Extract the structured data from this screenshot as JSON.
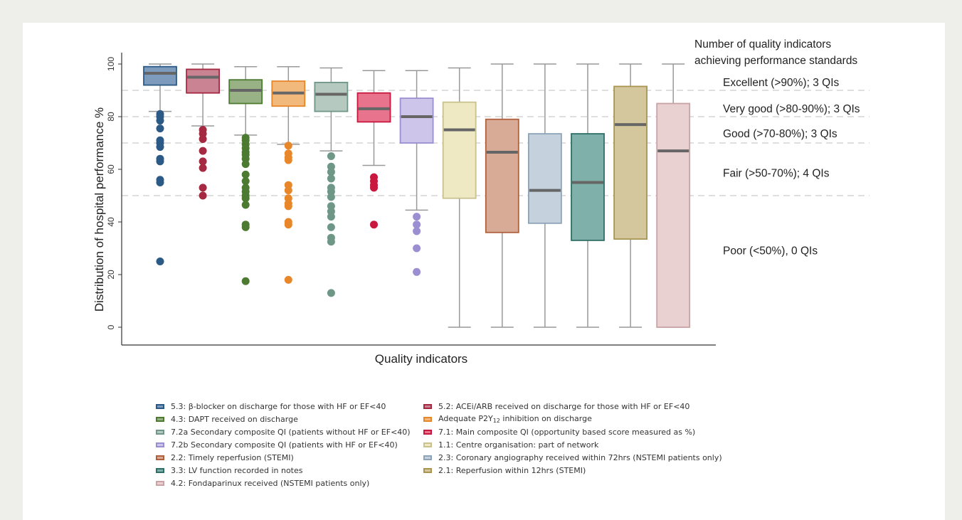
{
  "chart_data": {
    "type": "box",
    "xlabel": "Quality indicators",
    "ylabel": "Distribution of hospital performance %",
    "ylim": [
      0,
      100
    ],
    "yticks": [
      0,
      20,
      40,
      60,
      80,
      100
    ],
    "reference_lines": [
      50,
      70,
      80,
      90
    ],
    "annotation_title": [
      "Number of quality indicators",
      "achieving performance standards"
    ],
    "annotations": [
      {
        "text": "Excellent (>90%); 3 QIs",
        "y": 93
      },
      {
        "text": "Very good (>80-90%); 3 QIs",
        "y": 83
      },
      {
        "text": "Good (>70-80%); 3 QIs",
        "y": 73.5
      },
      {
        "text": "Fair (>50-70%); 4 QIs",
        "y": 58.5
      },
      {
        "text": "Poor (<50%), 0 QIs",
        "y": 29
      }
    ],
    "series": [
      {
        "name": "5.3: β-blocker on discharge for those with HF or EF<40",
        "fill": "#7d9cbd",
        "stroke": "#2c5a86",
        "whisker_low": 82,
        "q1": 92,
        "median": 96.5,
        "q3": 99,
        "whisker_high": 100,
        "outliers": [
          81,
          80,
          78.5,
          75.5,
          71,
          70,
          68.5,
          64,
          63,
          56,
          55,
          25
        ]
      },
      {
        "name": "5.2: ACEi/ARB received on discharge for those with HF or EF<40",
        "fill": "#c98393",
        "stroke": "#a52941",
        "whisker_low": 76.5,
        "q1": 89,
        "median": 95,
        "q3": 98,
        "whisker_high": 100,
        "outliers": [
          75,
          73.5,
          71.5,
          67,
          63,
          60.5,
          53,
          50
        ]
      },
      {
        "name": "4.3: DAPT received on discharge",
        "fill": "#98b285",
        "stroke": "#4b7a30",
        "whisker_low": 73,
        "q1": 85,
        "median": 90,
        "q3": 94,
        "whisker_high": 99,
        "outliers": [
          72,
          71,
          69.5,
          68,
          66.5,
          65.5,
          64,
          62,
          58,
          55.5,
          53,
          51.5,
          50,
          49,
          46.5,
          39,
          38,
          17.5
        ]
      },
      {
        "name": "Adequate P2Y12 inhibition on discharge",
        "fill": "#f2b97c",
        "stroke": "#e8862a",
        "whisker_low": 69.5,
        "q1": 84,
        "median": 89,
        "q3": 93.5,
        "whisker_high": 99,
        "outliers": [
          69,
          66,
          64.5,
          63.5,
          54,
          52,
          49,
          47,
          46,
          40,
          39,
          18
        ]
      },
      {
        "name": "7.2a Secondary composite QI (patients without HF or EF<40)",
        "fill": "#b5c9c0",
        "stroke": "#6f9787",
        "whisker_low": 67,
        "q1": 82,
        "median": 88.5,
        "q3": 93,
        "whisker_high": 98.5,
        "outliers": [
          65,
          61,
          59,
          56.5,
          53,
          51.5,
          49.5,
          46,
          44,
          42,
          38,
          34,
          32.5,
          13
        ]
      },
      {
        "name": "7.1: Main composite QI (opportunity based score measured as %)",
        "fill": "#e7738c",
        "stroke": "#c8183f",
        "whisker_low": 61.5,
        "q1": 78,
        "median": 83,
        "q3": 89,
        "whisker_high": 97.5,
        "outliers": [
          57,
          55.5,
          54,
          53,
          39
        ]
      },
      {
        "name": "7.2b Secondary composite QI (patients with HF or EF<40)",
        "fill": "#cdc5ea",
        "stroke": "#9b8ed1",
        "whisker_low": 44.5,
        "q1": 70,
        "median": 80,
        "q3": 87,
        "whisker_high": 97.5,
        "outliers": [
          42,
          39,
          36.5,
          30,
          21
        ]
      },
      {
        "name": "1.1: Centre organisation: part of network",
        "fill": "#eee9c2",
        "stroke": "#c9c190",
        "whisker_low": 0,
        "q1": 49,
        "median": 75,
        "q3": 85.5,
        "whisker_high": 98.5,
        "outliers": []
      },
      {
        "name": "2.2: Timely reperfusion (STEMI)",
        "fill": "#d8ab96",
        "stroke": "#b1603d",
        "whisker_low": 0,
        "q1": 36,
        "median": 66.5,
        "q3": 79,
        "whisker_high": 100,
        "outliers": []
      },
      {
        "name": "2.3: Coronary angiography received within 72hrs (NSTEMI patients only)",
        "fill": "#c5d1dc",
        "stroke": "#8ea4b9",
        "whisker_low": 0,
        "q1": 39.5,
        "median": 52,
        "q3": 73.5,
        "whisker_high": 100,
        "outliers": []
      },
      {
        "name": "3.3: LV function recorded in notes",
        "fill": "#7fb1aa",
        "stroke": "#2d6f67",
        "whisker_low": 0,
        "q1": 33,
        "median": 55,
        "q3": 73.5,
        "whisker_high": 100,
        "outliers": []
      },
      {
        "name": "2.1: Reperfusion within 12hrs (STEMI)",
        "fill": "#d5c79d",
        "stroke": "#a99550",
        "whisker_low": 0,
        "q1": 33.5,
        "median": 77,
        "q3": 91.5,
        "whisker_high": 100,
        "outliers": []
      },
      {
        "name": "4.2: Fondaparinux received (NSTEMI patients only)",
        "fill": "#e9d0d1",
        "stroke": "#c9a3a5",
        "whisker_low": 0,
        "q1": 0,
        "median": 67,
        "q3": 85,
        "whisker_high": 100,
        "outliers": []
      }
    ]
  },
  "legend": {
    "items": [
      {
        "label": "5.3: β-blocker on discharge for those with HF or EF<40",
        "fill": "#7d9cbd",
        "stroke": "#2c5a86"
      },
      {
        "label": "5.2: ACEi/ARB received on discharge for those with HF or EF<40",
        "fill": "#c98393",
        "stroke": "#a52941"
      },
      {
        "label": "4.3: DAPT received on discharge",
        "fill": "#98b285",
        "stroke": "#4b7a30"
      },
      {
        "label_pre": "Adequate P2Y",
        "label_sub": "12",
        "label_post": " inhibition on discharge",
        "fill": "#f2b97c",
        "stroke": "#e8862a"
      },
      {
        "label": "7.2a Secondary composite QI (patients without HF or EF<40)",
        "fill": "#b5c9c0",
        "stroke": "#6f9787"
      },
      {
        "label": "7.1: Main composite QI (opportunity based score measured as %)",
        "fill": "#e7738c",
        "stroke": "#c8183f"
      },
      {
        "label": "7.2b Secondary composite QI (patients with HF or EF<40)",
        "fill": "#cdc5ea",
        "stroke": "#9b8ed1"
      },
      {
        "label": "1.1: Centre organisation: part of network",
        "fill": "#eee9c2",
        "stroke": "#c9c190"
      },
      {
        "label": "2.2: Timely reperfusion (STEMI)",
        "fill": "#d8ab96",
        "stroke": "#b1603d"
      },
      {
        "label": "2.3: Coronary angiography received within 72hrs (NSTEMI patients only)",
        "fill": "#c5d1dc",
        "stroke": "#8ea4b9"
      },
      {
        "label": "3.3: LV function recorded in notes",
        "fill": "#7fb1aa",
        "stroke": "#2d6f67"
      },
      {
        "label": "2.1: Reperfusion within 12hrs (STEMI)",
        "fill": "#d5c79d",
        "stroke": "#a99550"
      },
      {
        "label": "4.2: Fondaparinux received (NSTEMI patients only)",
        "fill": "#e9d0d1",
        "stroke": "#c9a3a5"
      }
    ]
  }
}
